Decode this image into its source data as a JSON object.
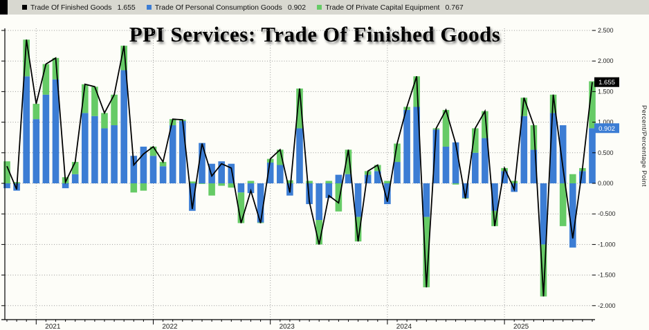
{
  "title": "PPI Services: Trade Of Finished Goods",
  "legend": {
    "items": [
      {
        "label": "Trade Of Finished Goods",
        "value": "1.655",
        "color": "#000000"
      },
      {
        "label": "Trade Of Personal Consumption Goods",
        "value": "0.902",
        "color": "#3C7DD4"
      },
      {
        "label": "Trade Of Private Capital Equipment",
        "value": "0.767",
        "color": "#66CB66"
      }
    ]
  },
  "y_axis": {
    "title": "Percent/Percentage Point",
    "ticks": [
      "2.500",
      "2.000",
      "1.500",
      "1.000",
      "0.500",
      "0.000",
      "-0.500",
      "-1.000",
      "-1.500",
      "-2.000"
    ],
    "badges": [
      {
        "text": "1.655",
        "color": "#000000"
      },
      {
        "text": "0.902",
        "color": "#3C7DD4"
      }
    ]
  },
  "x_axis": {
    "ticks": [
      "2021",
      "2022",
      "2023",
      "2024",
      "2025"
    ]
  },
  "chart_data": {
    "type": "combo",
    "title": "PPI Services: Trade Of Finished Goods",
    "ylabel": "Percent/Percentage Point",
    "ylim": [
      -2.25,
      2.75
    ],
    "y_grid_step": 0.5,
    "grid": "dotted",
    "legend_position": "top",
    "x": [
      "2020-10",
      "2020-11",
      "2020-12",
      "2021-01",
      "2021-02",
      "2021-03",
      "2021-04",
      "2021-05",
      "2021-06",
      "2021-07",
      "2021-08",
      "2021-09",
      "2021-10",
      "2021-11",
      "2021-12",
      "2022-01",
      "2022-02",
      "2022-03",
      "2022-04",
      "2022-05",
      "2022-06",
      "2022-07",
      "2022-08",
      "2022-09",
      "2022-10",
      "2022-11",
      "2022-12",
      "2023-01",
      "2023-02",
      "2023-03",
      "2023-04",
      "2023-05",
      "2023-06",
      "2023-07",
      "2023-08",
      "2023-09",
      "2023-10",
      "2023-11",
      "2023-12",
      "2024-01",
      "2024-02",
      "2024-03",
      "2024-04",
      "2024-05",
      "2024-06",
      "2024-07",
      "2024-08",
      "2024-09",
      "2024-10",
      "2024-11",
      "2024-12",
      "2025-01",
      "2025-02",
      "2025-03",
      "2025-04",
      "2025-05",
      "2025-06",
      "2025-07",
      "2025-08",
      "2025-09",
      "2025-10"
    ],
    "series": [
      {
        "name": "Trade Of Finished Goods",
        "type": "line",
        "color": "#000000",
        "last_value": 1.655,
        "values": [
          0.28,
          -0.1,
          2.35,
          1.3,
          1.95,
          2.05,
          0.02,
          0.35,
          1.62,
          1.58,
          1.15,
          1.45,
          2.25,
          0.3,
          0.48,
          0.6,
          0.35,
          1.05,
          1.04,
          -0.42,
          0.65,
          0.12,
          0.32,
          0.25,
          -0.65,
          -0.12,
          -0.65,
          0.4,
          0.55,
          -0.15,
          1.55,
          -0.3,
          -1.0,
          -0.2,
          -0.32,
          0.55,
          -0.95,
          0.2,
          0.3,
          -0.3,
          0.65,
          1.25,
          1.75,
          -1.7,
          0.9,
          1.2,
          0.65,
          -0.25,
          0.9,
          1.18,
          -0.7,
          0.25,
          -0.1,
          1.4,
          0.95,
          -1.85,
          1.45,
          0.25,
          -0.9,
          0.25,
          1.655
        ]
      },
      {
        "name": "Trade Of Personal Consumption Goods",
        "type": "bar",
        "stack": "bars",
        "color": "#3C7DD4",
        "last_value": 0.902,
        "values": [
          -0.08,
          -0.12,
          1.75,
          1.05,
          1.45,
          1.7,
          -0.08,
          0.15,
          1.15,
          1.1,
          0.9,
          0.95,
          1.85,
          0.45,
          0.6,
          0.45,
          0.28,
          0.95,
          1.02,
          -0.45,
          0.66,
          0.32,
          0.36,
          0.32,
          -0.15,
          -0.16,
          -0.64,
          0.34,
          0.3,
          -0.2,
          0.9,
          -0.34,
          -0.6,
          -0.24,
          0.14,
          0.15,
          -0.55,
          0.14,
          0.2,
          -0.34,
          0.35,
          1.2,
          1.25,
          -0.55,
          0.88,
          0.6,
          0.67,
          -0.24,
          0.5,
          0.74,
          -0.45,
          0.2,
          -0.14,
          1.1,
          0.55,
          -1.0,
          1.15,
          0.95,
          -1.05,
          0.2,
          0.902
        ]
      },
      {
        "name": "Trade Of Private Capital Equipment",
        "type": "bar",
        "stack": "bars",
        "color": "#66CB66",
        "last_value": 0.767,
        "values": [
          0.36,
          0.02,
          0.6,
          0.25,
          0.5,
          0.35,
          0.1,
          0.2,
          0.47,
          0.48,
          0.25,
          0.5,
          0.4,
          -0.15,
          -0.12,
          0.15,
          0.07,
          0.1,
          0.02,
          0.03,
          -0.01,
          -0.2,
          -0.04,
          -0.07,
          -0.5,
          0.04,
          -0.01,
          0.06,
          0.25,
          0.05,
          0.65,
          0.04,
          -0.4,
          0.04,
          -0.46,
          0.4,
          -0.4,
          0.06,
          0.1,
          0.04,
          0.3,
          0.05,
          0.5,
          -1.15,
          0.02,
          0.6,
          -0.02,
          -0.01,
          0.4,
          0.44,
          -0.25,
          0.05,
          0.04,
          0.3,
          0.4,
          -0.85,
          0.3,
          -0.7,
          0.15,
          0.05,
          0.767
        ]
      }
    ]
  }
}
